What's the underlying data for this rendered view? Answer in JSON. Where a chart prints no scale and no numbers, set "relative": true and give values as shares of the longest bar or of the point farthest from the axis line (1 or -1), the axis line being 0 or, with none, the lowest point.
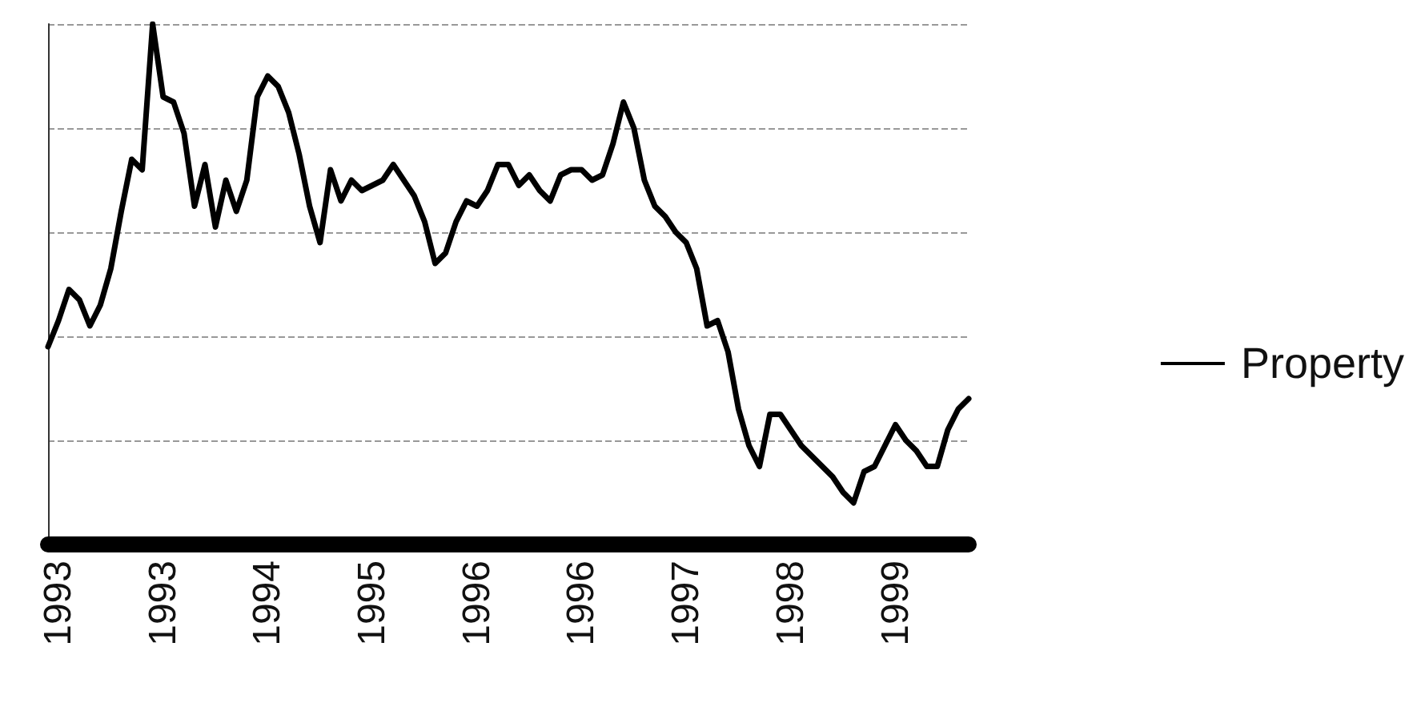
{
  "chart_data": {
    "type": "line",
    "relative": true,
    "grid": "y",
    "legend": "right",
    "marker": "none",
    "line_style": "solid",
    "categories": [
      null,
      "1993",
      null,
      null,
      null,
      null,
      null,
      null,
      null,
      null,
      null,
      "1993",
      null,
      null,
      null,
      null,
      null,
      null,
      null,
      null,
      null,
      "1994",
      null,
      null,
      null,
      null,
      null,
      null,
      null,
      null,
      null,
      "1995",
      null,
      null,
      null,
      null,
      null,
      null,
      null,
      null,
      null,
      "1996",
      null,
      null,
      null,
      null,
      null,
      null,
      null,
      null,
      null,
      "1996",
      null,
      null,
      null,
      null,
      null,
      null,
      null,
      null,
      null,
      "1997",
      null,
      null,
      null,
      null,
      null,
      null,
      null,
      null,
      null,
      "1998",
      null,
      null,
      null,
      null,
      null,
      null,
      null,
      null,
      null,
      "1999",
      null,
      null,
      null,
      null,
      null,
      null,
      null
    ],
    "series": [
      {
        "name": "Property",
        "color": "#000000",
        "values": [
          0.38,
          0.43,
          0.49,
          0.47,
          0.42,
          0.46,
          0.53,
          0.64,
          0.74,
          0.72,
          1,
          0.86,
          0.85,
          0.79,
          0.65,
          0.73,
          0.61,
          0.7,
          0.64,
          0.7,
          0.86,
          0.9,
          0.88,
          0.83,
          0.75,
          0.65,
          0.58,
          0.72,
          0.66,
          0.7,
          0.68,
          0.69,
          0.7,
          0.73,
          0.7,
          0.67,
          0.62,
          0.54,
          0.56,
          0.62,
          0.66,
          0.65,
          0.68,
          0.73,
          0.73,
          0.69,
          0.71,
          0.68,
          0.66,
          0.71,
          0.72,
          0.72,
          0.7,
          0.71,
          0.77,
          0.85,
          0.8,
          0.7,
          0.65,
          0.63,
          0.6,
          0.58,
          0.53,
          0.42,
          0.43,
          0.37,
          0.26,
          0.19,
          0.15,
          0.25,
          0.25,
          0.22,
          0.19,
          0.17,
          0.15,
          0.13,
          0.1,
          0.08,
          0.14,
          0.15,
          0.19,
          0.23,
          0.2,
          0.18,
          0.15,
          0.15,
          0.22,
          0.26,
          0.28
        ]
      }
    ]
  }
}
